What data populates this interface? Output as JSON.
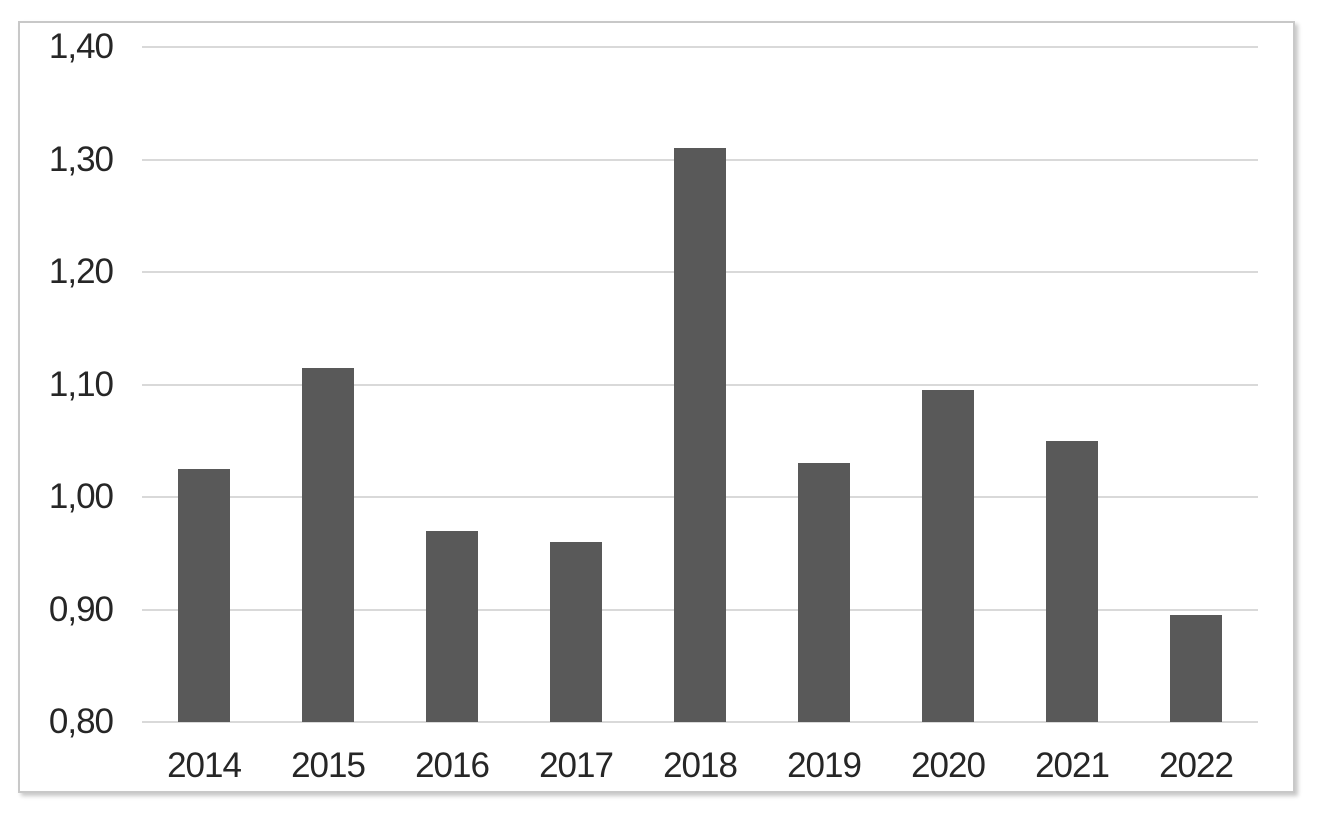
{
  "chart_data": {
    "type": "bar",
    "title": "",
    "xlabel": "",
    "ylabel": "",
    "categories": [
      "2014",
      "2015",
      "2016",
      "2017",
      "2018",
      "2019",
      "2020",
      "2021",
      "2022"
    ],
    "values": [
      1.025,
      1.115,
      0.97,
      0.96,
      1.31,
      1.03,
      1.095,
      1.05,
      0.895
    ],
    "ylim": [
      0.8,
      1.4
    ],
    "y_tick_labels": [
      "1,40",
      "1,30",
      "1,20",
      "1,10",
      "1,00",
      "0,90",
      "0,80"
    ],
    "decimal_separator": ",",
    "grid": "horizontal",
    "legend_position": "none",
    "bar_color": "#595959",
    "gridline_color": "#d9d9d9",
    "axis_text_color": "#262626",
    "frame_border_color": "#c8c8c8",
    "background_color": "#ffffff"
  }
}
